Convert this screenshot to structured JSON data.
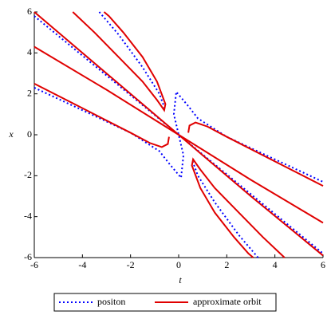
{
  "chart_data": {
    "type": "line",
    "x_label": "t",
    "y_label": "x",
    "xlim": [
      -6,
      6
    ],
    "ylim": [
      -6,
      6
    ],
    "xticks": [
      -6,
      -4,
      -2,
      0,
      2,
      4,
      6
    ],
    "yticks": [
      -6,
      -4,
      -2,
      0,
      2,
      4,
      6
    ],
    "legend": "bottom",
    "series": [
      {
        "name": "positon",
        "color": "#0000ff",
        "style": "dotted",
        "x": [
          -3.3,
          -2.5,
          -1.5,
          -0.8,
          -0.55,
          null,
          -6,
          -3,
          0,
          3,
          6,
          null,
          -6,
          -4,
          -2,
          -0.8,
          -0.4,
          0.1,
          0.2,
          0,
          -0.2,
          -0.1,
          0.4,
          0.8,
          2,
          4,
          6,
          null,
          3.3,
          2.5,
          1.5,
          0.8,
          0.55
        ],
        "values": [
          6,
          4.9,
          3.3,
          2,
          1.2,
          null,
          5.8,
          2.9,
          0,
          -2.9,
          -5.8,
          null,
          2.3,
          1.2,
          0.1,
          -0.8,
          -1.4,
          -2.1,
          -1,
          0,
          1,
          2.1,
          1.4,
          0.8,
          -0.1,
          -1.2,
          -2.3,
          null,
          -6,
          -4.9,
          -3.3,
          -2,
          -1.2
        ]
      },
      {
        "name": "approximate orbit",
        "color": "#e00000",
        "style": "solid",
        "x": [
          -4.4,
          -3.5,
          -2.5,
          -1.5,
          -0.9,
          -0.6,
          -0.55,
          -0.9,
          -1.5,
          -2.3,
          -2.9,
          -3.1,
          null,
          -6,
          -3,
          0,
          3,
          6,
          null,
          -6,
          -3,
          0,
          3,
          6,
          null,
          -6,
          -4,
          -2,
          -1.2,
          -0.7,
          -0.45,
          -0.4,
          null,
          6,
          4,
          2,
          1.2,
          0.7,
          0.45,
          0.4,
          null,
          4.4,
          3.5,
          2.5,
          1.5,
          0.9,
          0.6,
          0.55,
          0.9,
          1.5,
          2.3,
          2.9,
          3.1
        ],
        "values": [
          6,
          5,
          3.8,
          2.6,
          1.7,
          1.2,
          1.5,
          2.6,
          3.8,
          5,
          5.8,
          6,
          null,
          6,
          3,
          0,
          -3,
          -5.9,
          null,
          4.3,
          2.2,
          0,
          -2.2,
          -4.3,
          null,
          2.5,
          1.3,
          0.1,
          -0.4,
          -0.6,
          -0.45,
          -0.1,
          null,
          -2.5,
          -1.3,
          -0.1,
          0.4,
          0.6,
          0.45,
          0.1,
          null,
          -6,
          -5,
          -3.8,
          -2.6,
          -1.7,
          -1.2,
          -1.5,
          -2.6,
          -3.8,
          -5,
          -5.8,
          -6
        ]
      }
    ]
  }
}
